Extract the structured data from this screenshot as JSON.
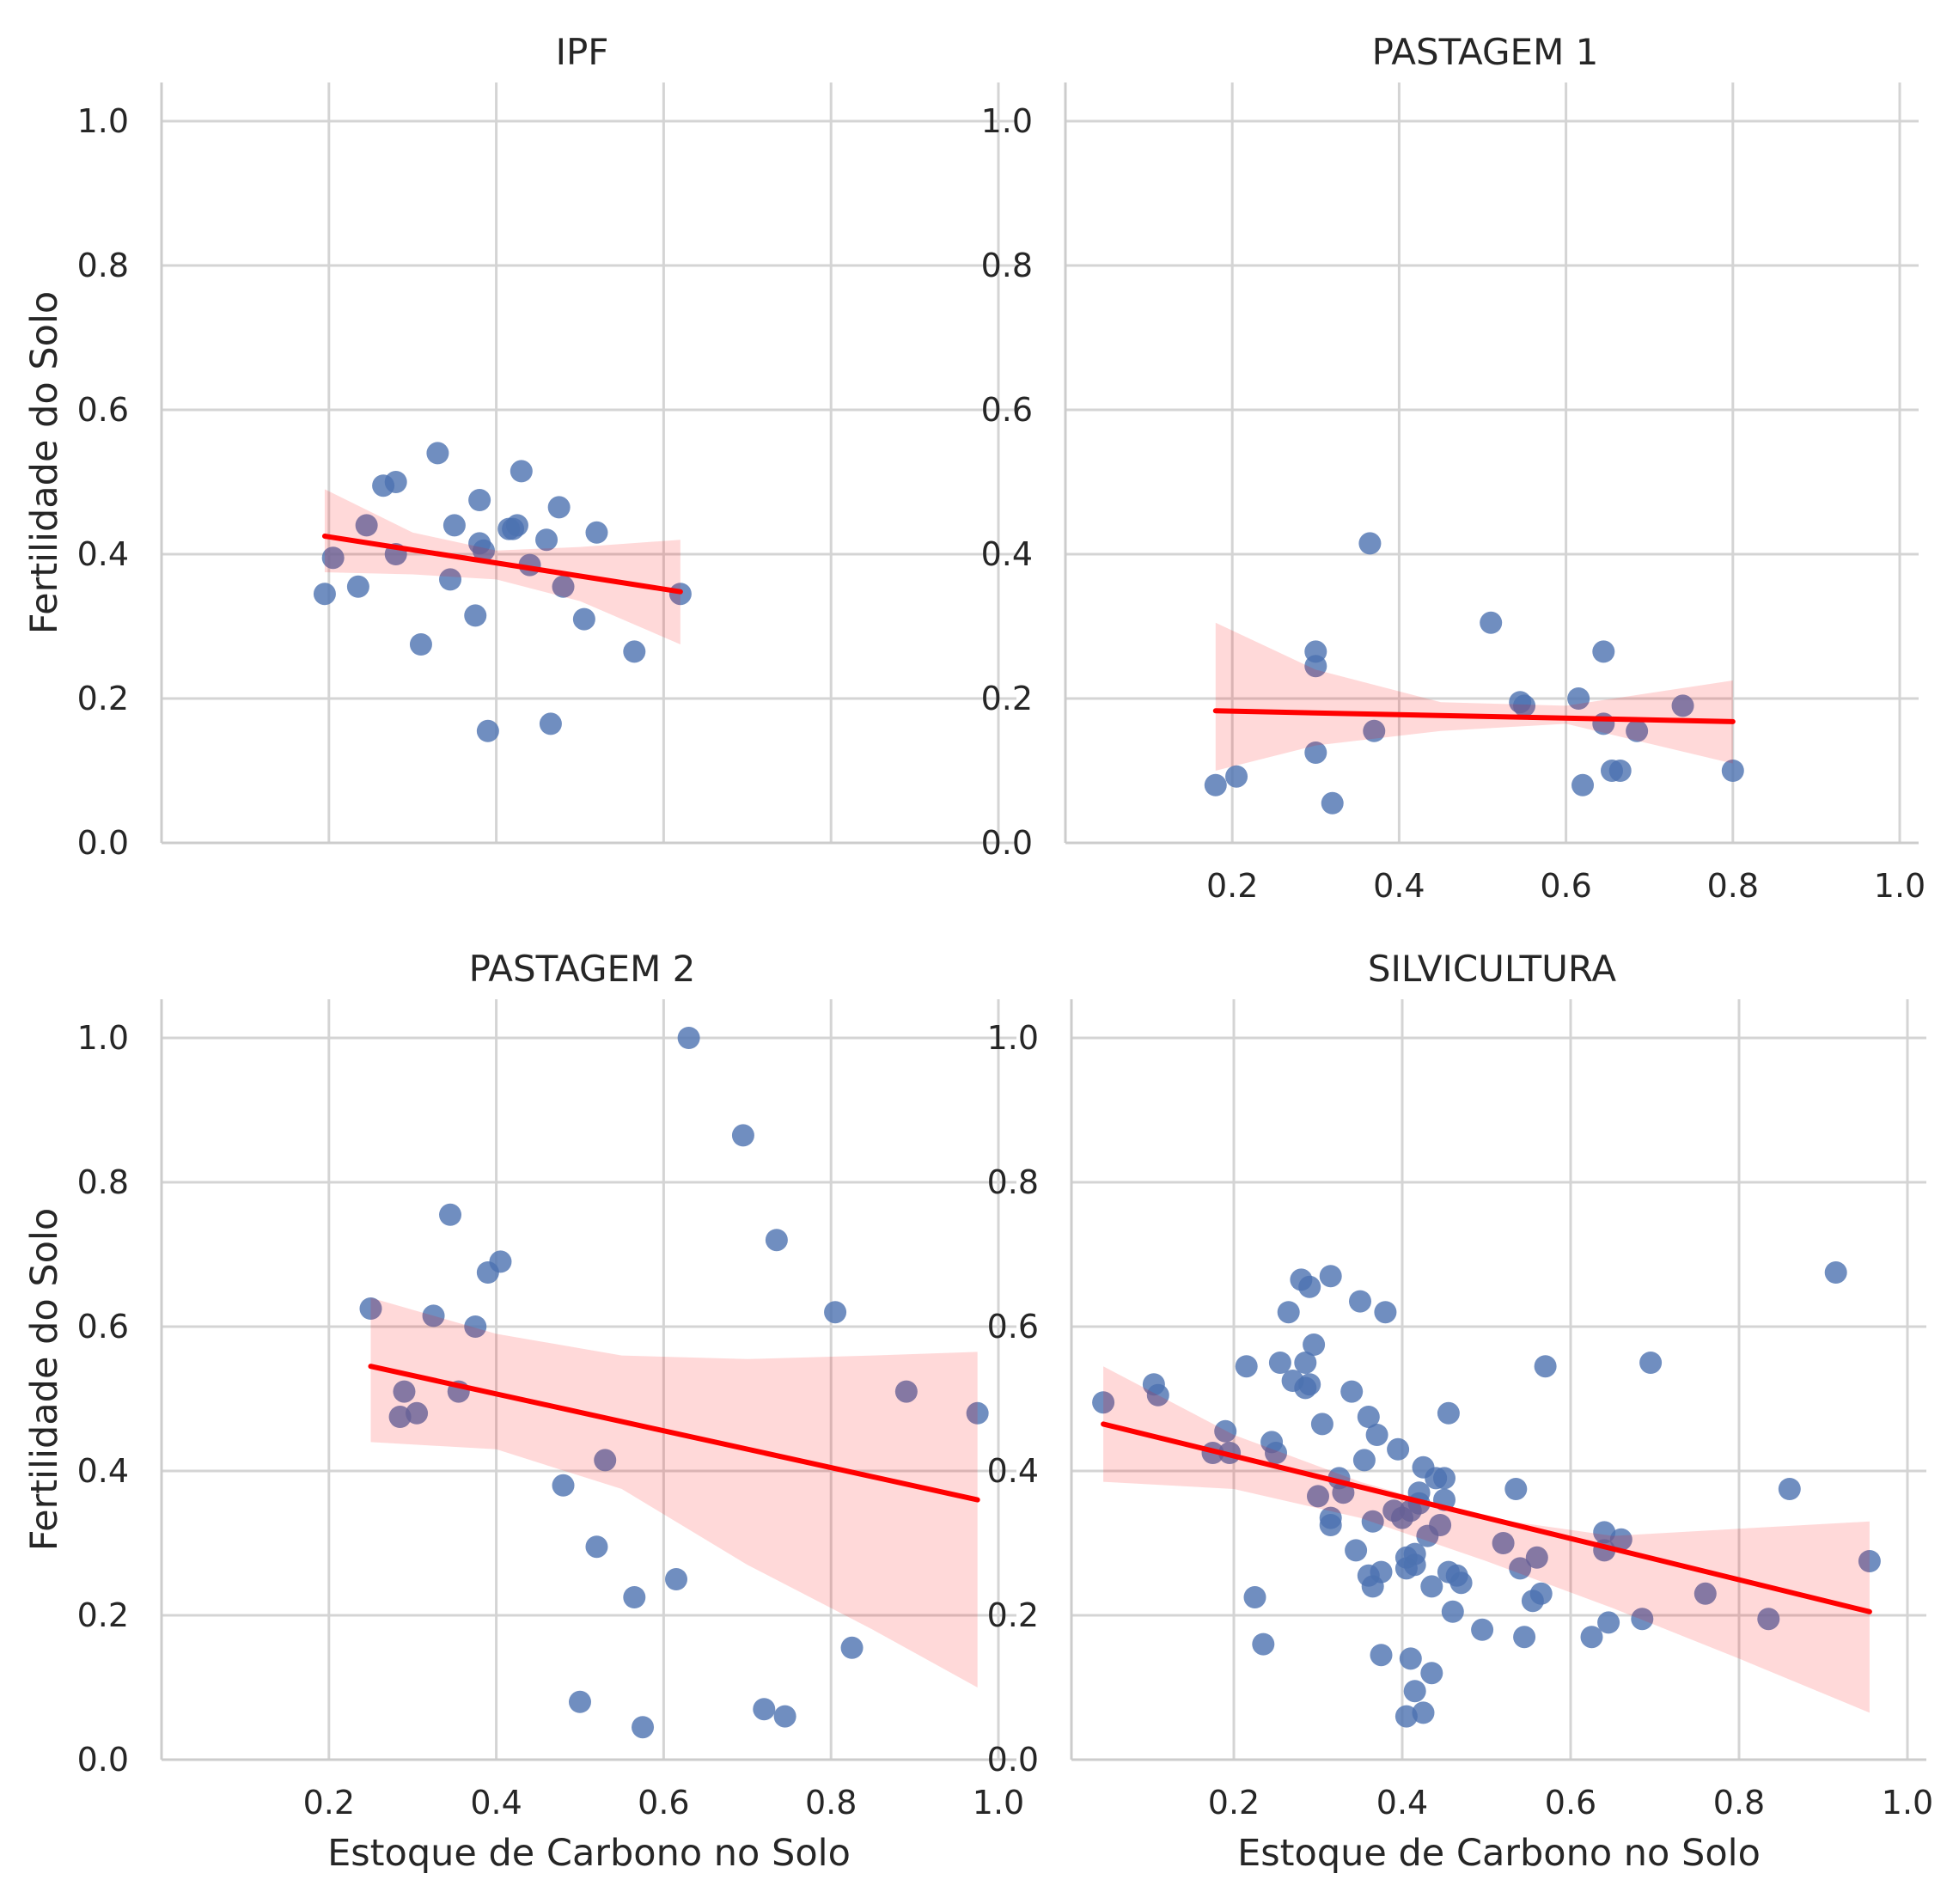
{
  "chart_data": [
    {
      "type": "scatter",
      "title": "IPF",
      "xlabel": "",
      "ylabel": "Fertilidade do Solo",
      "xlim": [
        0.0,
        1.02
      ],
      "ylim": [
        0.0,
        1.05
      ],
      "x_ticks": [
        "0.2",
        "0.4",
        "0.6",
        "0.8",
        "1.0"
      ],
      "x_tick_labels_visible": false,
      "y_ticks": [
        "0.0",
        "0.2",
        "0.4",
        "0.6",
        "0.8",
        "1.0"
      ],
      "points": [
        {
          "x": 0.195,
          "y": 0.345
        },
        {
          "x": 0.205,
          "y": 0.395
        },
        {
          "x": 0.235,
          "y": 0.355
        },
        {
          "x": 0.245,
          "y": 0.44
        },
        {
          "x": 0.265,
          "y": 0.495
        },
        {
          "x": 0.28,
          "y": 0.5
        },
        {
          "x": 0.28,
          "y": 0.4
        },
        {
          "x": 0.31,
          "y": 0.275
        },
        {
          "x": 0.33,
          "y": 0.54
        },
        {
          "x": 0.345,
          "y": 0.365
        },
        {
          "x": 0.35,
          "y": 0.44
        },
        {
          "x": 0.375,
          "y": 0.315
        },
        {
          "x": 0.38,
          "y": 0.415
        },
        {
          "x": 0.38,
          "y": 0.475
        },
        {
          "x": 0.385,
          "y": 0.405
        },
        {
          "x": 0.39,
          "y": 0.155
        },
        {
          "x": 0.415,
          "y": 0.435
        },
        {
          "x": 0.42,
          "y": 0.435
        },
        {
          "x": 0.425,
          "y": 0.44
        },
        {
          "x": 0.43,
          "y": 0.515
        },
        {
          "x": 0.44,
          "y": 0.385
        },
        {
          "x": 0.46,
          "y": 0.42
        },
        {
          "x": 0.465,
          "y": 0.165
        },
        {
          "x": 0.475,
          "y": 0.465
        },
        {
          "x": 0.48,
          "y": 0.355
        },
        {
          "x": 0.505,
          "y": 0.31
        },
        {
          "x": 0.52,
          "y": 0.43
        },
        {
          "x": 0.565,
          "y": 0.265
        },
        {
          "x": 0.62,
          "y": 0.345
        }
      ],
      "regression": {
        "x": [
          0.195,
          0.62
        ],
        "y": [
          0.425,
          0.348
        ]
      },
      "ci_band": {
        "x": [
          0.195,
          0.3,
          0.4,
          0.5,
          0.62
        ],
        "lower": [
          0.375,
          0.372,
          0.365,
          0.335,
          0.275
        ],
        "upper": [
          0.49,
          0.43,
          0.405,
          0.41,
          0.42
        ]
      }
    },
    {
      "type": "scatter",
      "title": "PASTAGEM 1",
      "xlabel": "",
      "ylabel": "",
      "xlim": [
        0.0,
        1.02
      ],
      "ylim": [
        0.0,
        1.05
      ],
      "x_ticks": [
        "0.2",
        "0.4",
        "0.6",
        "0.8",
        "1.0"
      ],
      "x_tick_labels_visible": true,
      "y_ticks": [
        "0.0",
        "0.2",
        "0.4",
        "0.6",
        "0.8",
        "1.0"
      ],
      "points": [
        {
          "x": 0.18,
          "y": 0.08
        },
        {
          "x": 0.205,
          "y": 0.092
        },
        {
          "x": 0.3,
          "y": 0.245
        },
        {
          "x": 0.3,
          "y": 0.265
        },
        {
          "x": 0.3,
          "y": 0.125
        },
        {
          "x": 0.32,
          "y": 0.055
        },
        {
          "x": 0.365,
          "y": 0.415
        },
        {
          "x": 0.37,
          "y": 0.155
        },
        {
          "x": 0.51,
          "y": 0.305
        },
        {
          "x": 0.545,
          "y": 0.195
        },
        {
          "x": 0.55,
          "y": 0.19
        },
        {
          "x": 0.615,
          "y": 0.2
        },
        {
          "x": 0.62,
          "y": 0.08
        },
        {
          "x": 0.645,
          "y": 0.265
        },
        {
          "x": 0.645,
          "y": 0.165
        },
        {
          "x": 0.655,
          "y": 0.1
        },
        {
          "x": 0.665,
          "y": 0.1
        },
        {
          "x": 0.685,
          "y": 0.155
        },
        {
          "x": 0.74,
          "y": 0.19
        },
        {
          "x": 0.8,
          "y": 0.1
        }
      ],
      "regression": {
        "x": [
          0.18,
          0.8
        ],
        "y": [
          0.183,
          0.168
        ]
      },
      "ci_band": {
        "x": [
          0.18,
          0.3,
          0.45,
          0.6,
          0.8
        ],
        "lower": [
          0.1,
          0.135,
          0.155,
          0.165,
          0.11
        ],
        "upper": [
          0.305,
          0.24,
          0.195,
          0.19,
          0.225
        ]
      }
    },
    {
      "type": "scatter",
      "title": "PASTAGEM 2",
      "xlabel": "Estoque de Carbono no Solo",
      "ylabel": "Fertilidade do Solo",
      "xlim": [
        0.0,
        1.02
      ],
      "ylim": [
        0.0,
        1.05
      ],
      "x_ticks": [
        "0.2",
        "0.4",
        "0.6",
        "0.8",
        "1.0"
      ],
      "x_tick_labels_visible": true,
      "y_ticks": [
        "0.0",
        "0.2",
        "0.4",
        "0.6",
        "0.8",
        "1.0"
      ],
      "points": [
        {
          "x": 0.25,
          "y": 0.625
        },
        {
          "x": 0.285,
          "y": 0.475
        },
        {
          "x": 0.29,
          "y": 0.51
        },
        {
          "x": 0.305,
          "y": 0.48
        },
        {
          "x": 0.325,
          "y": 0.615
        },
        {
          "x": 0.345,
          "y": 0.755
        },
        {
          "x": 0.355,
          "y": 0.51
        },
        {
          "x": 0.375,
          "y": 0.6
        },
        {
          "x": 0.39,
          "y": 0.675
        },
        {
          "x": 0.405,
          "y": 0.69
        },
        {
          "x": 0.48,
          "y": 0.38
        },
        {
          "x": 0.5,
          "y": 0.08
        },
        {
          "x": 0.52,
          "y": 0.295
        },
        {
          "x": 0.53,
          "y": 0.415
        },
        {
          "x": 0.565,
          "y": 0.225
        },
        {
          "x": 0.575,
          "y": 0.045
        },
        {
          "x": 0.615,
          "y": 0.25
        },
        {
          "x": 0.63,
          "y": 1.0
        },
        {
          "x": 0.695,
          "y": 0.865
        },
        {
          "x": 0.72,
          "y": 0.07
        },
        {
          "x": 0.735,
          "y": 0.72
        },
        {
          "x": 0.745,
          "y": 0.06
        },
        {
          "x": 0.805,
          "y": 0.62
        },
        {
          "x": 0.825,
          "y": 0.155
        },
        {
          "x": 0.89,
          "y": 0.51
        },
        {
          "x": 0.975,
          "y": 0.48
        }
      ],
      "regression": {
        "x": [
          0.25,
          0.975
        ],
        "y": [
          0.545,
          0.36
        ]
      },
      "ci_band": {
        "x": [
          0.25,
          0.4,
          0.55,
          0.7,
          0.85,
          0.975
        ],
        "lower": [
          0.44,
          0.43,
          0.375,
          0.27,
          0.18,
          0.1
        ],
        "upper": [
          0.64,
          0.59,
          0.56,
          0.555,
          0.56,
          0.565
        ]
      }
    },
    {
      "type": "scatter",
      "title": "SILVICULTURA",
      "xlabel": "Estoque de Carbono no Solo",
      "ylabel": "",
      "xlim": [
        0.0,
        1.02
      ],
      "ylim": [
        0.0,
        1.05
      ],
      "x_ticks": [
        "0.2",
        "0.4",
        "0.6",
        "0.8",
        "1.0"
      ],
      "x_tick_labels_visible": true,
      "y_ticks": [
        "0.0",
        "0.2",
        "0.4",
        "0.6",
        "0.8",
        "1.0"
      ],
      "points": [
        {
          "x": 0.045,
          "y": 0.495
        },
        {
          "x": 0.105,
          "y": 0.52
        },
        {
          "x": 0.11,
          "y": 0.505
        },
        {
          "x": 0.175,
          "y": 0.425
        },
        {
          "x": 0.19,
          "y": 0.455
        },
        {
          "x": 0.195,
          "y": 0.425
        },
        {
          "x": 0.215,
          "y": 0.545
        },
        {
          "x": 0.225,
          "y": 0.225
        },
        {
          "x": 0.235,
          "y": 0.16
        },
        {
          "x": 0.245,
          "y": 0.44
        },
        {
          "x": 0.25,
          "y": 0.425
        },
        {
          "x": 0.255,
          "y": 0.55
        },
        {
          "x": 0.265,
          "y": 0.62
        },
        {
          "x": 0.27,
          "y": 0.525
        },
        {
          "x": 0.28,
          "y": 0.665
        },
        {
          "x": 0.285,
          "y": 0.55
        },
        {
          "x": 0.285,
          "y": 0.515
        },
        {
          "x": 0.29,
          "y": 0.655
        },
        {
          "x": 0.29,
          "y": 0.52
        },
        {
          "x": 0.295,
          "y": 0.575
        },
        {
          "x": 0.3,
          "y": 0.365
        },
        {
          "x": 0.305,
          "y": 0.465
        },
        {
          "x": 0.315,
          "y": 0.67
        },
        {
          "x": 0.315,
          "y": 0.335
        },
        {
          "x": 0.315,
          "y": 0.325
        },
        {
          "x": 0.325,
          "y": 0.39
        },
        {
          "x": 0.33,
          "y": 0.37
        },
        {
          "x": 0.34,
          "y": 0.51
        },
        {
          "x": 0.345,
          "y": 0.29
        },
        {
          "x": 0.35,
          "y": 0.635
        },
        {
          "x": 0.355,
          "y": 0.415
        },
        {
          "x": 0.36,
          "y": 0.255
        },
        {
          "x": 0.36,
          "y": 0.475
        },
        {
          "x": 0.365,
          "y": 0.33
        },
        {
          "x": 0.365,
          "y": 0.24
        },
        {
          "x": 0.37,
          "y": 0.45
        },
        {
          "x": 0.375,
          "y": 0.26
        },
        {
          "x": 0.375,
          "y": 0.145
        },
        {
          "x": 0.38,
          "y": 0.62
        },
        {
          "x": 0.39,
          "y": 0.345
        },
        {
          "x": 0.395,
          "y": 0.43
        },
        {
          "x": 0.4,
          "y": 0.335
        },
        {
          "x": 0.405,
          "y": 0.28
        },
        {
          "x": 0.405,
          "y": 0.265
        },
        {
          "x": 0.405,
          "y": 0.06
        },
        {
          "x": 0.41,
          "y": 0.14
        },
        {
          "x": 0.41,
          "y": 0.345
        },
        {
          "x": 0.415,
          "y": 0.285
        },
        {
          "x": 0.415,
          "y": 0.27
        },
        {
          "x": 0.415,
          "y": 0.095
        },
        {
          "x": 0.42,
          "y": 0.37
        },
        {
          "x": 0.42,
          "y": 0.355
        },
        {
          "x": 0.425,
          "y": 0.405
        },
        {
          "x": 0.425,
          "y": 0.065
        },
        {
          "x": 0.43,
          "y": 0.31
        },
        {
          "x": 0.435,
          "y": 0.24
        },
        {
          "x": 0.435,
          "y": 0.12
        },
        {
          "x": 0.44,
          "y": 0.39
        },
        {
          "x": 0.445,
          "y": 0.325
        },
        {
          "x": 0.45,
          "y": 0.39
        },
        {
          "x": 0.45,
          "y": 0.36
        },
        {
          "x": 0.455,
          "y": 0.48
        },
        {
          "x": 0.455,
          "y": 0.26
        },
        {
          "x": 0.46,
          "y": 0.205
        },
        {
          "x": 0.465,
          "y": 0.255
        },
        {
          "x": 0.47,
          "y": 0.245
        },
        {
          "x": 0.495,
          "y": 0.18
        },
        {
          "x": 0.52,
          "y": 0.3
        },
        {
          "x": 0.535,
          "y": 0.375
        },
        {
          "x": 0.54,
          "y": 0.265
        },
        {
          "x": 0.545,
          "y": 0.17
        },
        {
          "x": 0.555,
          "y": 0.22
        },
        {
          "x": 0.56,
          "y": 0.28
        },
        {
          "x": 0.565,
          "y": 0.23
        },
        {
          "x": 0.57,
          "y": 0.545
        },
        {
          "x": 0.625,
          "y": 0.17
        },
        {
          "x": 0.64,
          "y": 0.315
        },
        {
          "x": 0.64,
          "y": 0.29
        },
        {
          "x": 0.645,
          "y": 0.19
        },
        {
          "x": 0.66,
          "y": 0.305
        },
        {
          "x": 0.685,
          "y": 0.195
        },
        {
          "x": 0.695,
          "y": 0.55
        },
        {
          "x": 0.76,
          "y": 0.23
        },
        {
          "x": 0.835,
          "y": 0.195
        },
        {
          "x": 0.86,
          "y": 0.375
        },
        {
          "x": 0.915,
          "y": 0.675
        },
        {
          "x": 0.955,
          "y": 0.275
        }
      ],
      "regression": {
        "x": [
          0.045,
          0.955
        ],
        "y": [
          0.465,
          0.205
        ]
      },
      "ci_band": {
        "x": [
          0.045,
          0.2,
          0.35,
          0.5,
          0.65,
          0.8,
          0.955
        ],
        "lower": [
          0.385,
          0.375,
          0.335,
          0.275,
          0.21,
          0.14,
          0.065
        ],
        "upper": [
          0.545,
          0.45,
          0.385,
          0.335,
          0.31,
          0.32,
          0.33
        ]
      }
    }
  ]
}
